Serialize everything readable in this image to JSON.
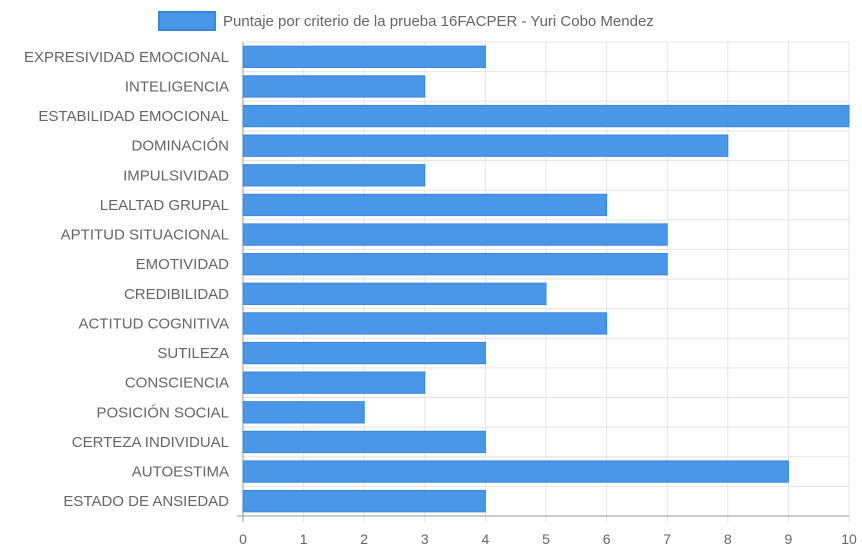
{
  "chart_data": {
    "type": "bar",
    "orientation": "horizontal",
    "categories": [
      "EXPRESIVIDAD EMOCIONAL",
      "INTELIGENCIA",
      "ESTABILIDAD EMOCIONAL",
      "DOMINACIÓN",
      "IMPULSIVIDAD",
      "LEALTAD GRUPAL",
      "APTITUD SITUACIONAL",
      "EMOTIVIDAD",
      "CREDIBILIDAD",
      "ACTITUD COGNITIVA",
      "SUTILEZA",
      "CONSCIENCIA",
      "POSICIÓN SOCIAL",
      "CERTEZA INDIVIDUAL",
      "AUTOESTIMA",
      "ESTADO DE ANSIEDAD"
    ],
    "series": [
      {
        "name": "Puntaje por criterio de la prueba 16FACPER - Yuri Cobo Mendez",
        "values": [
          4,
          3,
          10,
          8,
          3,
          6,
          7,
          7,
          5,
          6,
          4,
          3,
          2,
          4,
          9,
          4
        ],
        "color": "#4a97e8"
      }
    ],
    "xlim": [
      0,
      10
    ],
    "xticks": [
      "0",
      "1",
      "2",
      "3",
      "4",
      "5",
      "6",
      "7",
      "8",
      "9",
      "10"
    ],
    "grid": true,
    "legend_position": "top"
  },
  "colors": {
    "bar_fill": "#4a97e8",
    "bar_border": "#3a86dc",
    "grid": "#e5e5e5",
    "axis": "#999999",
    "text": "#666666"
  }
}
